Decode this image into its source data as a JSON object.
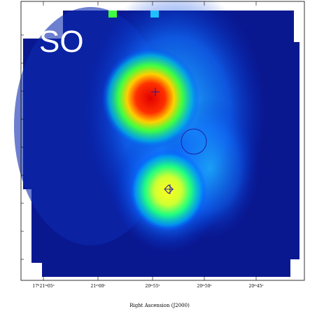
{
  "panel_label": "SO",
  "x_axis": {
    "label": "Right Ascension (J2000)",
    "ticks": [
      "17ʰ21ᵐ05ˢ",
      "21ᵐ00ˢ",
      "20ᵐ55ˢ",
      "20ᵐ50ˢ",
      "20ᵐ45ˢ"
    ]
  }
}
